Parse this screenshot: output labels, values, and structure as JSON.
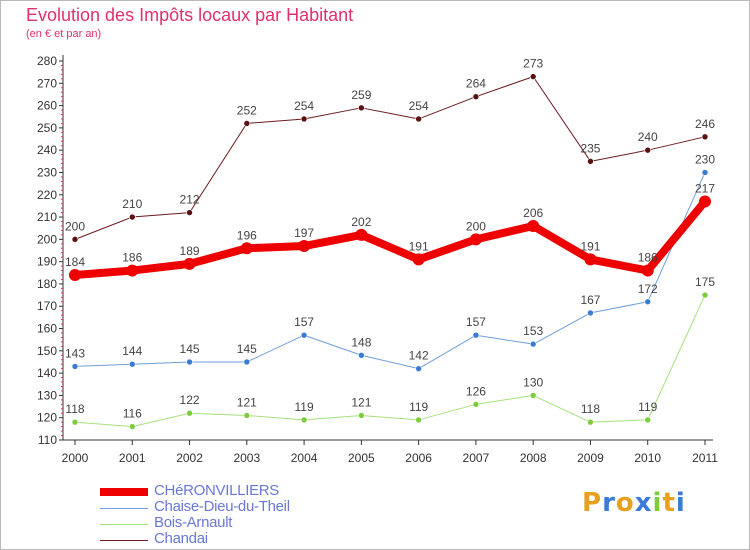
{
  "chart_data": {
    "type": "line",
    "title": "Evolution des Impôts locaux par Habitant",
    "subtitle": "(en € et par an)",
    "x": [
      "2000",
      "2001",
      "2002",
      "2003",
      "2004",
      "2005",
      "2006",
      "2007",
      "2008",
      "2009",
      "2010",
      "2011"
    ],
    "ylim": [
      110,
      280
    ],
    "yticks": [
      110,
      120,
      130,
      140,
      150,
      160,
      170,
      180,
      190,
      200,
      210,
      220,
      230,
      240,
      250,
      260,
      270,
      280
    ],
    "grid": false,
    "legend_position": "bottom-left",
    "series": [
      {
        "name": "Chandai",
        "color": "#6b1b1f",
        "point_color": "#5a1010",
        "width": 1,
        "point_radius": 3,
        "values": [
          200,
          210,
          212,
          252,
          254,
          259,
          254,
          264,
          273,
          235,
          240,
          246
        ]
      },
      {
        "name": "Chaise-Dieu-du-Theil",
        "color": "#6f9fd8",
        "point_color": "#3a7bd5",
        "width": 1,
        "point_radius": 3,
        "values": [
          143,
          144,
          145,
          145,
          157,
          148,
          142,
          157,
          153,
          167,
          172,
          230
        ]
      },
      {
        "name": "Bois-Arnault",
        "color": "#a6e07c",
        "point_color": "#7ccc3c",
        "width": 1,
        "point_radius": 3,
        "values": [
          118,
          116,
          122,
          121,
          119,
          121,
          119,
          126,
          130,
          118,
          119,
          175
        ]
      },
      {
        "name": "CHéRONVILLIERS",
        "color": "#ee0000",
        "point_color": "#ee0000",
        "width": 8,
        "point_radius": 6,
        "values": [
          184,
          186,
          189,
          196,
          197,
          202,
          191,
          200,
          206,
          191,
          186,
          217
        ]
      }
    ],
    "legend_order": [
      "CHéRONVILLIERS",
      "Chaise-Dieu-du-Theil",
      "Bois-Arnault",
      "Chandai"
    ]
  },
  "legend": {
    "items": [
      {
        "label": "CHéRONVILLIERS",
        "color": "#ee0000",
        "thickness": 8
      },
      {
        "label": "Chaise-Dieu-du-Theil",
        "color": "#6f9fd8",
        "thickness": 1
      },
      {
        "label": "Bois-Arnault",
        "color": "#a6e07c",
        "thickness": 1
      },
      {
        "label": "Chandai",
        "color": "#6b1b1f",
        "thickness": 1
      }
    ]
  },
  "logo": {
    "text": "Proxiti",
    "letter_colors": [
      "#e8a020",
      "#3a7bd5",
      "#e8a020",
      "#3a7bd5",
      "#7ccc3c",
      "#e8a020",
      "#3a7bd5"
    ]
  }
}
